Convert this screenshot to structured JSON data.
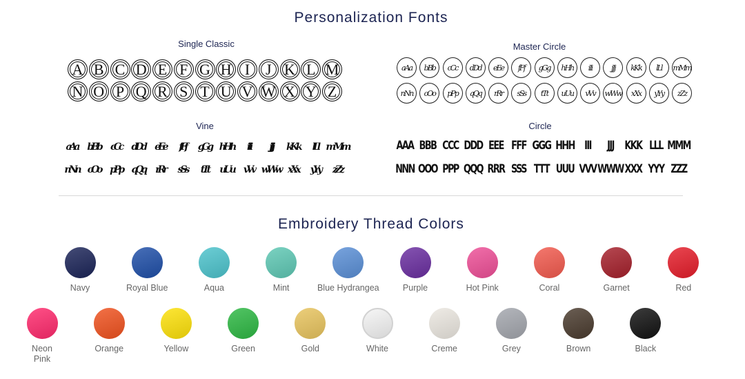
{
  "fonts_section": {
    "title": "Personalization Fonts",
    "single_classic": {
      "label": "Single Classic",
      "rows": [
        [
          "A",
          "B",
          "C",
          "D",
          "E",
          "F",
          "G",
          "H",
          "I",
          "J",
          "K",
          "L",
          "M"
        ],
        [
          "N",
          "O",
          "P",
          "Q",
          "R",
          "S",
          "T",
          "U",
          "V",
          "W",
          "X",
          "Y",
          "Z"
        ]
      ]
    },
    "master_circle": {
      "label": "Master Circle",
      "rows": [
        [
          "A",
          "B",
          "C",
          "D",
          "E",
          "F",
          "G",
          "H",
          "I",
          "J",
          "K",
          "L",
          "M"
        ],
        [
          "N",
          "O",
          "P",
          "Q",
          "R",
          "S",
          "T",
          "U",
          "V",
          "W",
          "X",
          "Y",
          "Z"
        ]
      ]
    },
    "vine": {
      "label": "Vine",
      "rows": [
        [
          "A",
          "B",
          "C",
          "D",
          "E",
          "F",
          "G",
          "H",
          "I",
          "J",
          "K",
          "L",
          "M"
        ],
        [
          "N",
          "O",
          "P",
          "Q",
          "R",
          "S",
          "T",
          "U",
          "V",
          "W",
          "X",
          "Y",
          "Z"
        ]
      ]
    },
    "circle": {
      "label": "Circle",
      "rows": [
        [
          "A",
          "B",
          "C",
          "D",
          "E",
          "F",
          "G",
          "H",
          "I",
          "J",
          "K",
          "L",
          "M"
        ],
        [
          "N",
          "O",
          "P",
          "Q",
          "R",
          "S",
          "T",
          "U",
          "V",
          "W",
          "X",
          "Y",
          "Z"
        ]
      ]
    }
  },
  "colors_section": {
    "title": "Embroidery Thread Colors",
    "rows": [
      [
        {
          "name": "Navy",
          "color": "#1b2458"
        },
        {
          "name": "Royal Blue",
          "color": "#1f4fa8"
        },
        {
          "name": "Aqua",
          "color": "#4cc3cc"
        },
        {
          "name": "Mint",
          "color": "#5ec8b4"
        },
        {
          "name": "Blue Hydrangea",
          "color": "#5a8fd6"
        },
        {
          "name": "Purple",
          "color": "#6a2ea0"
        },
        {
          "name": "Hot Pink",
          "color": "#ee4f97"
        },
        {
          "name": "Coral",
          "color": "#f25a4e"
        },
        {
          "name": "Garnet",
          "color": "#a5202b"
        },
        {
          "name": "Red",
          "color": "#e51d2a"
        }
      ],
      [
        {
          "name": "Neon Pink",
          "color": "#ff2a6d"
        },
        {
          "name": "Orange",
          "color": "#f0521f"
        },
        {
          "name": "Yellow",
          "color": "#fde10a"
        },
        {
          "name": "Green",
          "color": "#2db843"
        },
        {
          "name": "Gold",
          "color": "#e8c45e"
        },
        {
          "name": "White",
          "color": "#f4f4f4"
        },
        {
          "name": "Creme",
          "color": "#ebe7e0"
        },
        {
          "name": "Grey",
          "color": "#a3a6ad"
        },
        {
          "name": "Brown",
          "color": "#4a3b2e"
        },
        {
          "name": "Black",
          "color": "#111111"
        }
      ]
    ]
  }
}
